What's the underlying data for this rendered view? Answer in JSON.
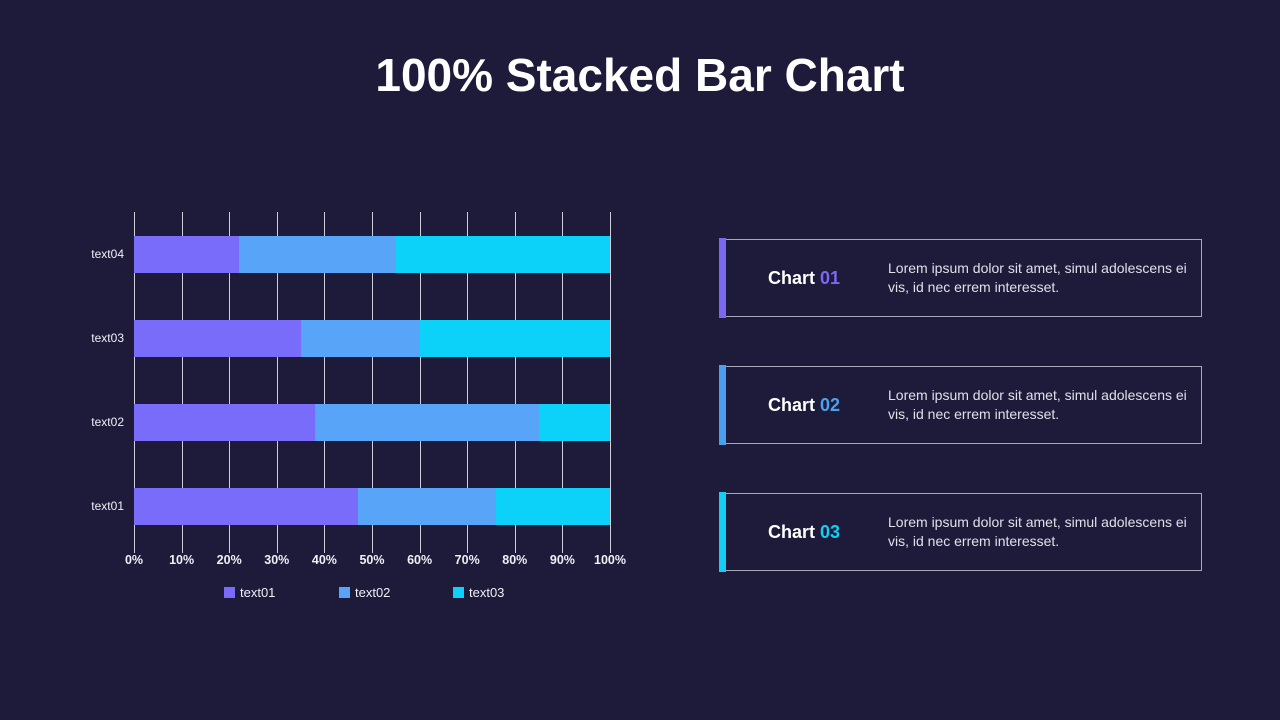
{
  "title": "100% Stacked Bar Chart",
  "chart_data": {
    "type": "bar",
    "orientation": "horizontal",
    "stacked": true,
    "stacked_to_100_percent": true,
    "title": "100% Stacked Bar Chart",
    "categories_top_to_bottom": [
      "text04",
      "text03",
      "text02",
      "text01"
    ],
    "series": [
      {
        "name": "text01",
        "color": "#7a6cfa",
        "values": [
          22,
          35,
          38,
          47
        ]
      },
      {
        "name": "text02",
        "color": "#58a4f8",
        "values": [
          33,
          25,
          47,
          29
        ]
      },
      {
        "name": "text03",
        "color": "#0cd2fa",
        "values": [
          45,
          40,
          15,
          24
        ]
      }
    ],
    "x_ticks": [
      "0%",
      "10%",
      "20%",
      "30%",
      "40%",
      "50%",
      "60%",
      "70%",
      "80%",
      "90%",
      "100%"
    ],
    "xlim": [
      0,
      100
    ],
    "grid": true,
    "legend_position": "bottom",
    "legend": [
      "text01",
      "text02",
      "text03"
    ]
  },
  "cards": [
    {
      "label": "Chart",
      "number": "01",
      "accent": "#7a68f0",
      "body": "Lorem ipsum dolor sit amet, simul adolescens ei vis, id nec errem interesset."
    },
    {
      "label": "Chart",
      "number": "02",
      "accent": "#4aa0ef",
      "body": "Lorem ipsum dolor sit amet, simul adolescens ei vis, id nec errem interesset."
    },
    {
      "label": "Chart",
      "number": "03",
      "accent": "#14cdf2",
      "body": "Lorem ipsum dolor sit amet, simul adolescens ei vis, id nec errem interesset."
    }
  ],
  "colors": {
    "background": "#1e1b3a",
    "gridline": "#e8e8f3",
    "text": "#ffffff"
  }
}
